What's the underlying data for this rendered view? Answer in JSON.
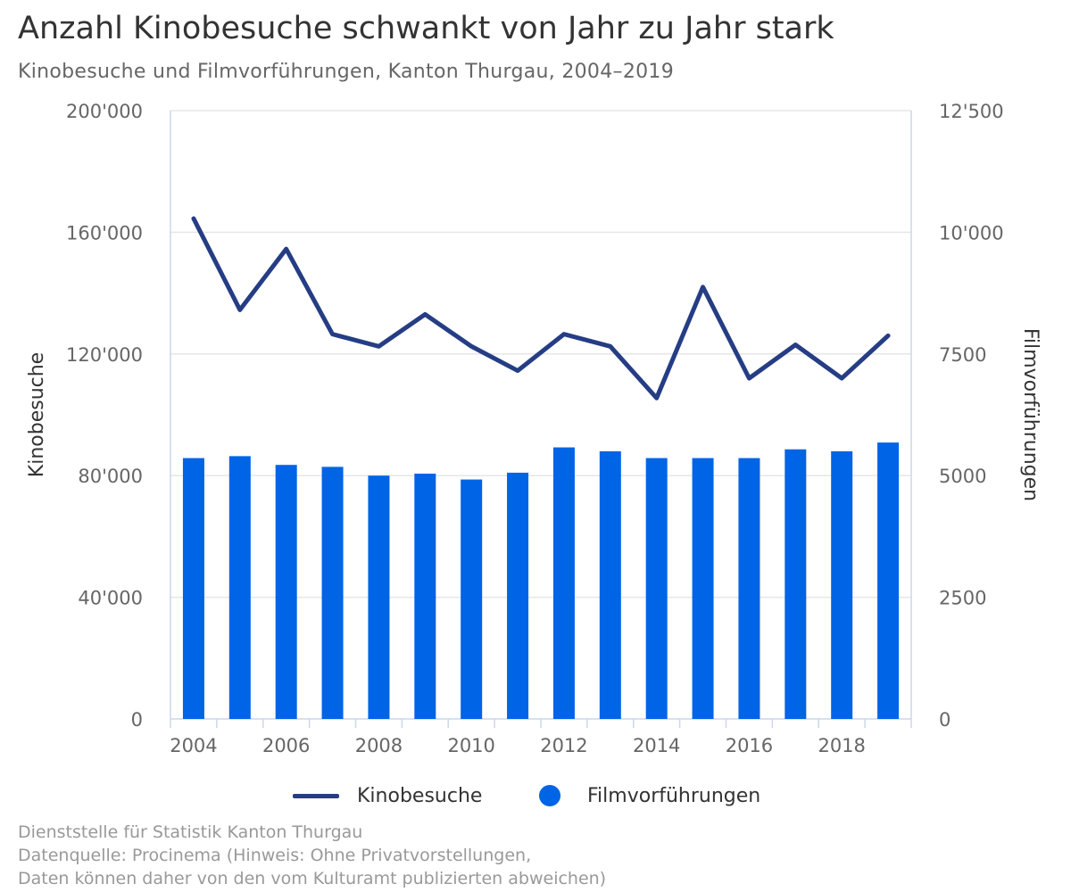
{
  "title": "Anzahl Kinobesuche schwankt von Jahr zu Jahr stark",
  "subtitle": "Kinobesuche und Filmvorführungen, Kanton Thurgau, 2004–2019",
  "footer": {
    "line1": "Dienststelle für Statistik Kanton Thurgau",
    "line2": "Datenquelle: Procinema (Hinweis: Ohne Privatvorstellungen,",
    "line3": "Daten können daher von den vom Kulturamt publizierten abweichen)"
  },
  "colors": {
    "line": "#253d84",
    "bars": "#0064e6",
    "grid": "#e6e6e6",
    "axis": "#ccd6eb",
    "tick_text": "#666666"
  },
  "chart_data": {
    "type": "bar+line",
    "x": [
      2004,
      2005,
      2006,
      2007,
      2008,
      2009,
      2010,
      2011,
      2012,
      2013,
      2014,
      2015,
      2016,
      2017,
      2018,
      2019
    ],
    "x_tick_labels": [
      "2004",
      "2006",
      "2008",
      "2010",
      "2012",
      "2014",
      "2016",
      "2018"
    ],
    "y_left": {
      "label": "Kinobesuche",
      "ylim": [
        0,
        200000
      ],
      "ticks": [
        "0",
        "40'000",
        "80'000",
        "120'000",
        "160'000",
        "200'000"
      ]
    },
    "y_right": {
      "label": "Filmvorführungen",
      "ylim": [
        0,
        12500
      ],
      "ticks": [
        "0",
        "2500",
        "5000",
        "7500",
        "10'000",
        "12'500"
      ]
    },
    "series": [
      {
        "name": "Kinobesuche",
        "type": "line",
        "axis": "left",
        "values": [
          164500,
          134500,
          154500,
          126500,
          122500,
          133000,
          122500,
          114500,
          126500,
          122500,
          105500,
          142000,
          112000,
          123000,
          112000,
          126000
        ]
      },
      {
        "name": "Filmvorführungen",
        "type": "bar",
        "axis": "right",
        "values": [
          5360,
          5400,
          5220,
          5180,
          5000,
          5040,
          4920,
          5060,
          5580,
          5500,
          5360,
          5360,
          5360,
          5540,
          5500,
          5680
        ]
      }
    ],
    "grid": true,
    "legend": "bottom-center"
  }
}
